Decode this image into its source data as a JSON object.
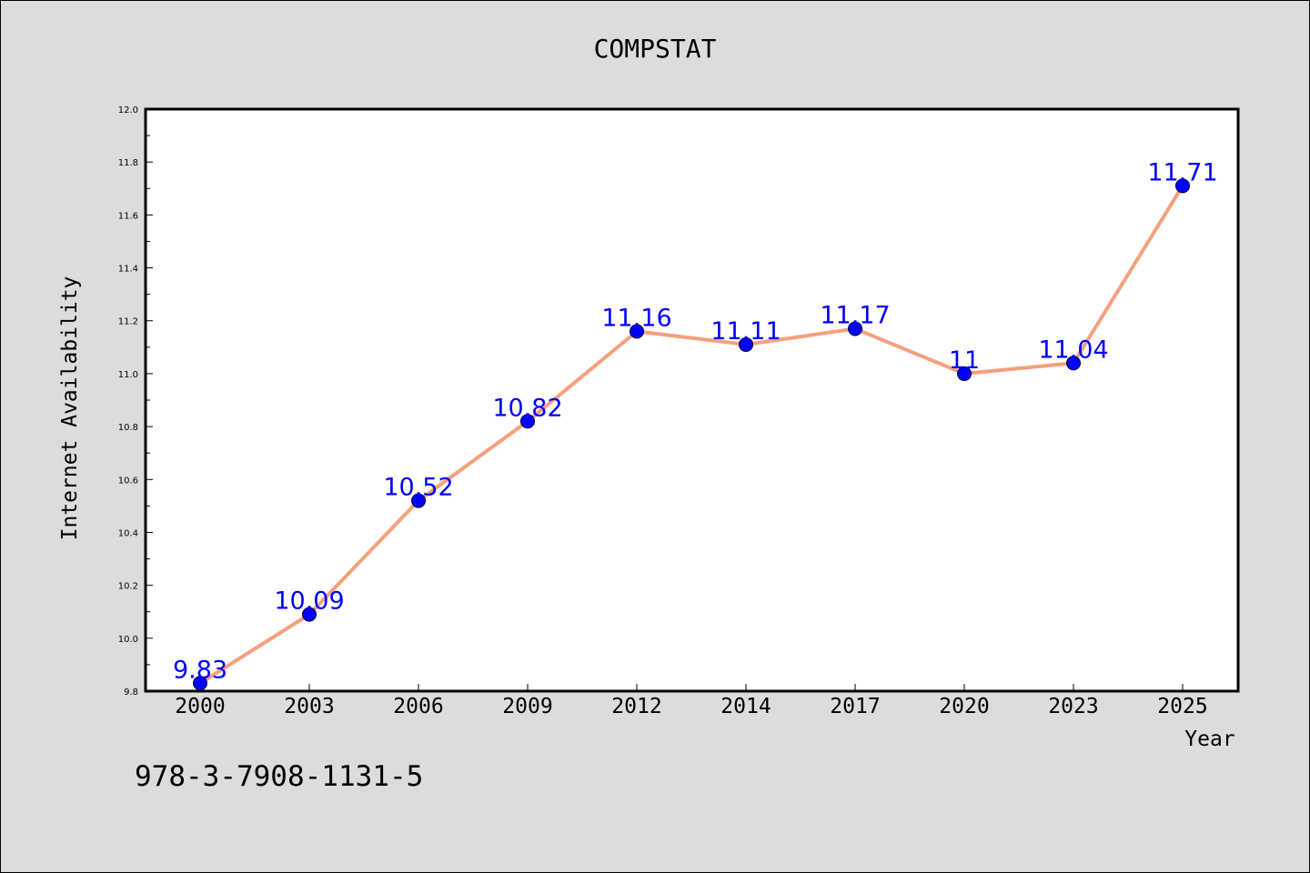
{
  "chart_data": {
    "type": "line",
    "title": "COMPSTAT",
    "xlabel": "Year",
    "ylabel": "Internet Availability",
    "categories": [
      "2000",
      "2003",
      "2006",
      "2009",
      "2012",
      "2014",
      "2017",
      "2020",
      "2023",
      "2025"
    ],
    "series": [
      {
        "values": [
          9.83,
          10.09,
          10.52,
          10.82,
          11.16,
          11.11,
          11.17,
          11,
          11.04,
          11.71
        ],
        "line_color": "#f4a07e",
        "marker_color": "#0000ff"
      }
    ],
    "ylim": [
      9.8,
      12.0
    ],
    "yticks": [
      "9.8",
      "10.0",
      "10.2",
      "10.4",
      "10.6",
      "10.8",
      "11.0",
      "11.2",
      "11.4",
      "11.6",
      "11.8",
      "12.0"
    ],
    "data_labels": [
      "9.83",
      "10.09",
      "10.52",
      "10.82",
      "11.16",
      "11.11",
      "11.17",
      "11",
      "11.04",
      "11.71"
    ],
    "grid": false,
    "legend": "none"
  },
  "footer": {
    "isbn": "978-3-7908-1131-5"
  }
}
